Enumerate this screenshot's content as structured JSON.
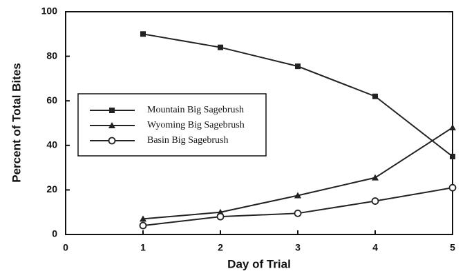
{
  "chart_data": {
    "type": "line",
    "xlabel": "Day of Trial",
    "ylabel": "Percent of Total Bites",
    "x": [
      1,
      2,
      3,
      4,
      5
    ],
    "xlim": [
      0,
      5
    ],
    "xticks": [
      0,
      1,
      2,
      3,
      4,
      5
    ],
    "ylim": [
      0,
      100
    ],
    "yticks": [
      0,
      20,
      40,
      60,
      80,
      100
    ],
    "series": [
      {
        "name": "Mountain Big Sagebrush",
        "color": "#222222",
        "marker": "square",
        "values": [
          90,
          84,
          75.5,
          62,
          35
        ]
      },
      {
        "name": "Wyoming Big Sagebrush",
        "color": "#222222",
        "marker": "triangle",
        "values": [
          7,
          10,
          17.5,
          25.5,
          48
        ]
      },
      {
        "name": "Basin Big Sagebrush",
        "color": "#222222",
        "marker": "circle",
        "values": [
          4,
          8,
          9.5,
          15,
          21
        ]
      }
    ]
  }
}
